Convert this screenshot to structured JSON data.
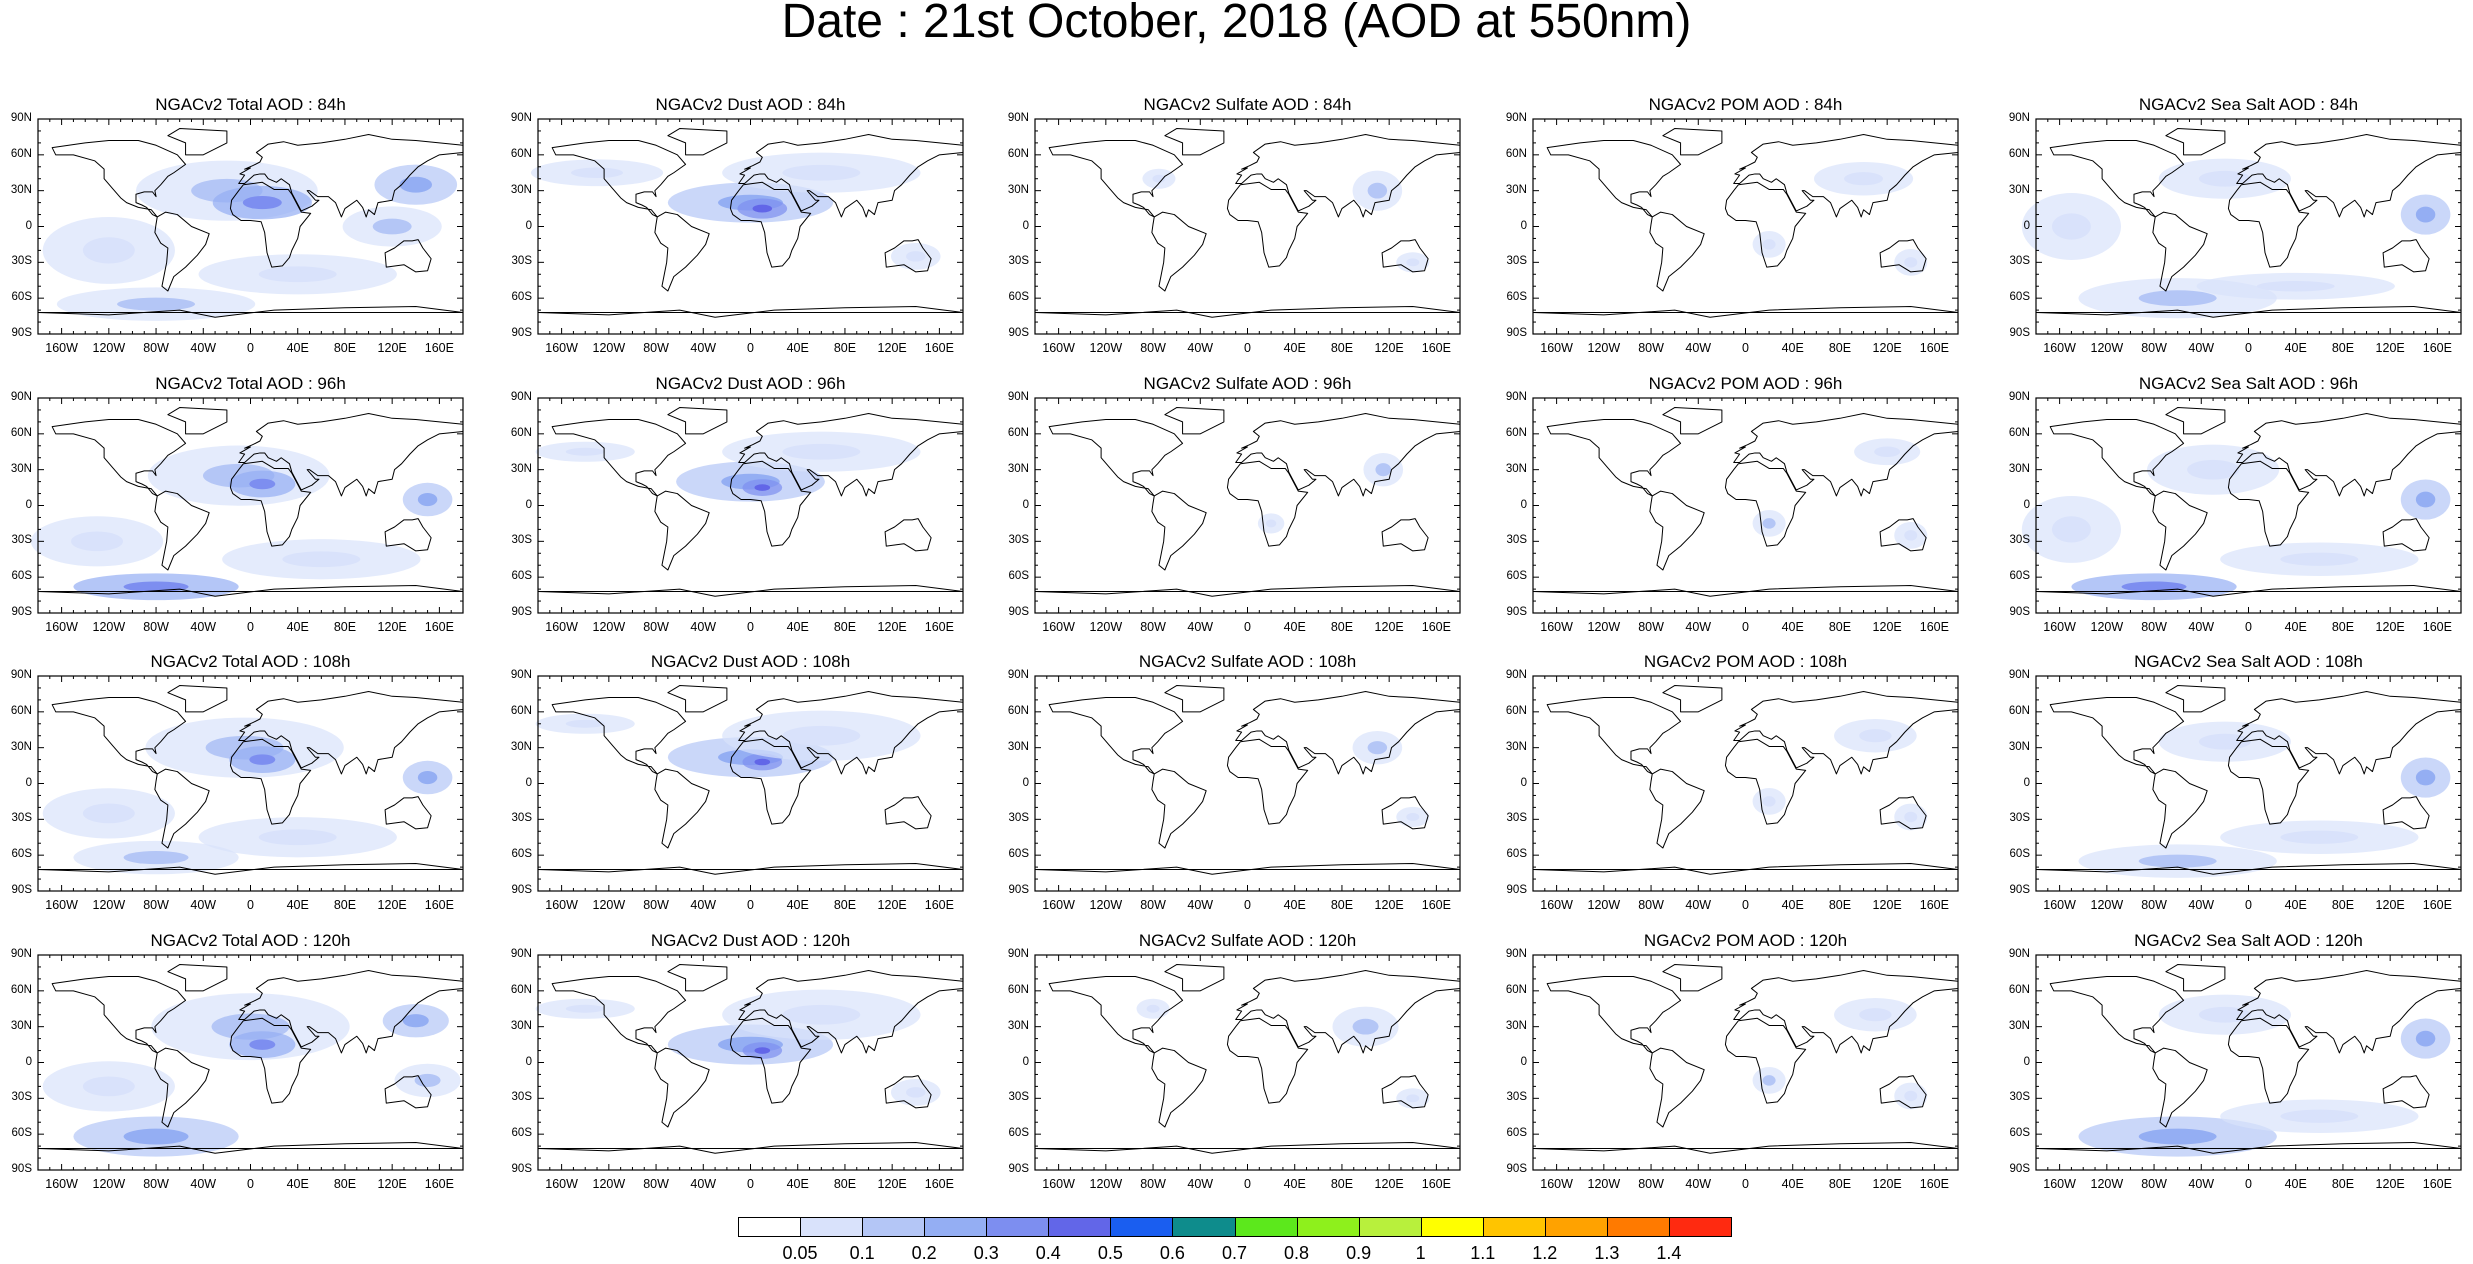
{
  "title": "Date : 21st October, 2018 (AOD at 550nm)",
  "panels": [
    [
      "NGACv2 Total AOD : 84h",
      "NGACv2 Dust AOD : 84h",
      "NGACv2 Sulfate AOD : 84h",
      "NGACv2 POM AOD : 84h",
      "NGACv2 Sea Salt AOD : 84h"
    ],
    [
      "NGACv2 Total AOD : 96h",
      "NGACv2 Dust AOD : 96h",
      "NGACv2 Sulfate AOD : 96h",
      "NGACv2 POM AOD : 96h",
      "NGACv2 Sea Salt AOD : 96h"
    ],
    [
      "NGACv2 Total AOD : 108h",
      "NGACv2 Dust AOD : 108h",
      "NGACv2 Sulfate AOD : 108h",
      "NGACv2 POM AOD : 108h",
      "NGACv2 Sea Salt AOD : 108h"
    ],
    [
      "NGACv2 Total AOD : 120h",
      "NGACv2 Dust AOD : 120h",
      "NGACv2 Sulfate AOD : 120h",
      "NGACv2 POM AOD : 120h",
      "NGACv2 Sea Salt  AOD : 120h"
    ]
  ],
  "lat_labels": [
    "90N",
    "60N",
    "30N",
    "0",
    "30S",
    "60S",
    "90S"
  ],
  "lon_labels": [
    "160W",
    "120W",
    "80W",
    "40W",
    "0",
    "40E",
    "80E",
    "120E",
    "160E"
  ],
  "colorbar": {
    "colors": [
      "#ffffff",
      "#d9e2fb",
      "#b4c6f6",
      "#94aef3",
      "#7d8ef0",
      "#6266e8",
      "#1a5ef0",
      "#0e8c8c",
      "#5ce81c",
      "#8ef01c",
      "#b8f03c",
      "#ffff00",
      "#ffc400",
      "#ffa200",
      "#ff7a00",
      "#ff2a10"
    ],
    "labels": [
      "0.05",
      "0.1",
      "0.2",
      "0.3",
      "0.4",
      "0.5",
      "0.6",
      "0.7",
      "0.8",
      "0.9",
      "1",
      "1.1",
      "1.2",
      "1.3",
      "1.4"
    ]
  },
  "rows": [
    {
      "blobs": [
        [
          {
            "lon": -20,
            "lat": 30,
            "rx": 55,
            "ry": 18,
            "level": 2
          },
          {
            "lon": 10,
            "lat": 20,
            "rx": 30,
            "ry": 10,
            "level": 4
          },
          {
            "lon": 140,
            "lat": 35,
            "rx": 25,
            "ry": 12,
            "level": 3
          },
          {
            "lon": -80,
            "lat": -65,
            "rx": 60,
            "ry": 10,
            "level": 2
          },
          {
            "lon": 120,
            "lat": 0,
            "rx": 30,
            "ry": 12,
            "level": 2
          },
          {
            "lon": -120,
            "lat": -20,
            "rx": 40,
            "ry": 20,
            "level": 1
          },
          {
            "lon": 40,
            "lat": -40,
            "rx": 60,
            "ry": 12,
            "level": 1
          }
        ],
        [
          {
            "lon": 0,
            "lat": 20,
            "rx": 50,
            "ry": 12,
            "level": 3
          },
          {
            "lon": 10,
            "lat": 15,
            "rx": 15,
            "ry": 6,
            "level": 5
          },
          {
            "lon": 60,
            "lat": 45,
            "rx": 60,
            "ry": 12,
            "level": 1
          },
          {
            "lon": -130,
            "lat": 45,
            "rx": 40,
            "ry": 8,
            "level": 1
          },
          {
            "lon": 140,
            "lat": -25,
            "rx": 15,
            "ry": 8,
            "level": 1
          }
        ],
        [
          {
            "lon": 110,
            "lat": 30,
            "rx": 15,
            "ry": 12,
            "level": 2
          },
          {
            "lon": -75,
            "lat": 40,
            "rx": 10,
            "ry": 6,
            "level": 1
          },
          {
            "lon": 140,
            "lat": -30,
            "rx": 10,
            "ry": 6,
            "level": 1
          }
        ],
        [
          {
            "lon": 100,
            "lat": 40,
            "rx": 30,
            "ry": 10,
            "level": 1
          },
          {
            "lon": 20,
            "lat": -15,
            "rx": 10,
            "ry": 8,
            "level": 1
          },
          {
            "lon": 140,
            "lat": -30,
            "rx": 10,
            "ry": 8,
            "level": 1
          }
        ],
        [
          {
            "lon": -60,
            "lat": -60,
            "rx": 60,
            "ry": 12,
            "level": 2
          },
          {
            "lon": 150,
            "lat": 10,
            "rx": 15,
            "ry": 12,
            "level": 3
          },
          {
            "lon": -20,
            "lat": 40,
            "rx": 40,
            "ry": 12,
            "level": 1
          },
          {
            "lon": 40,
            "lat": -50,
            "rx": 60,
            "ry": 8,
            "level": 1
          },
          {
            "lon": -150,
            "lat": 0,
            "rx": 30,
            "ry": 20,
            "level": 1
          }
        ]
      ]
    },
    {
      "blobs": [
        [
          {
            "lon": -10,
            "lat": 25,
            "rx": 55,
            "ry": 18,
            "level": 2
          },
          {
            "lon": 10,
            "lat": 18,
            "rx": 20,
            "ry": 8,
            "level": 4
          },
          {
            "lon": 150,
            "lat": 5,
            "rx": 15,
            "ry": 10,
            "level": 3
          },
          {
            "lon": -80,
            "lat": -68,
            "rx": 50,
            "ry": 8,
            "level": 4
          },
          {
            "lon": -130,
            "lat": -30,
            "rx": 40,
            "ry": 15,
            "level": 1
          },
          {
            "lon": 60,
            "lat": -45,
            "rx": 60,
            "ry": 12,
            "level": 1
          }
        ],
        [
          {
            "lon": 0,
            "lat": 20,
            "rx": 45,
            "ry": 12,
            "level": 3
          },
          {
            "lon": 10,
            "lat": 15,
            "rx": 12,
            "ry": 5,
            "level": 5
          },
          {
            "lon": 60,
            "lat": 45,
            "rx": 60,
            "ry": 12,
            "level": 1
          },
          {
            "lon": -140,
            "lat": 45,
            "rx": 30,
            "ry": 6,
            "level": 1
          }
        ],
        [
          {
            "lon": 115,
            "lat": 30,
            "rx": 12,
            "ry": 10,
            "level": 2
          },
          {
            "lon": 20,
            "lat": -15,
            "rx": 8,
            "ry": 6,
            "level": 1
          }
        ],
        [
          {
            "lon": 120,
            "lat": 45,
            "rx": 20,
            "ry": 8,
            "level": 1
          },
          {
            "lon": 20,
            "lat": -15,
            "rx": 10,
            "ry": 8,
            "level": 2
          },
          {
            "lon": 140,
            "lat": -25,
            "rx": 10,
            "ry": 8,
            "level": 1
          }
        ],
        [
          {
            "lon": -80,
            "lat": -68,
            "rx": 50,
            "ry": 8,
            "level": 4
          },
          {
            "lon": 150,
            "lat": 5,
            "rx": 15,
            "ry": 12,
            "level": 3
          },
          {
            "lon": -30,
            "lat": 30,
            "rx": 40,
            "ry": 15,
            "level": 1
          },
          {
            "lon": 60,
            "lat": -45,
            "rx": 60,
            "ry": 10,
            "level": 1
          },
          {
            "lon": -150,
            "lat": -20,
            "rx": 30,
            "ry": 20,
            "level": 1
          }
        ]
      ]
    },
    {
      "blobs": [
        [
          {
            "lon": -5,
            "lat": 30,
            "rx": 60,
            "ry": 18,
            "level": 2
          },
          {
            "lon": 10,
            "lat": 20,
            "rx": 20,
            "ry": 8,
            "level": 4
          },
          {
            "lon": 150,
            "lat": 5,
            "rx": 15,
            "ry": 10,
            "level": 3
          },
          {
            "lon": -80,
            "lat": -62,
            "rx": 50,
            "ry": 10,
            "level": 2
          },
          {
            "lon": -120,
            "lat": -25,
            "rx": 40,
            "ry": 15,
            "level": 1
          },
          {
            "lon": 40,
            "lat": -45,
            "rx": 60,
            "ry": 12,
            "level": 1
          }
        ],
        [
          {
            "lon": 0,
            "lat": 22,
            "rx": 50,
            "ry": 12,
            "level": 3
          },
          {
            "lon": 10,
            "lat": 18,
            "rx": 12,
            "ry": 5,
            "level": 5
          },
          {
            "lon": 60,
            "lat": 40,
            "rx": 60,
            "ry": 15,
            "level": 1
          },
          {
            "lon": -140,
            "lat": 50,
            "rx": 30,
            "ry": 6,
            "level": 1
          }
        ],
        [
          {
            "lon": 110,
            "lat": 30,
            "rx": 15,
            "ry": 10,
            "level": 2
          },
          {
            "lon": 140,
            "lat": -28,
            "rx": 10,
            "ry": 6,
            "level": 1
          }
        ],
        [
          {
            "lon": 110,
            "lat": 40,
            "rx": 25,
            "ry": 10,
            "level": 1
          },
          {
            "lon": 20,
            "lat": -15,
            "rx": 10,
            "ry": 8,
            "level": 1
          },
          {
            "lon": 140,
            "lat": -28,
            "rx": 10,
            "ry": 8,
            "level": 1
          }
        ],
        [
          {
            "lon": -60,
            "lat": -65,
            "rx": 60,
            "ry": 10,
            "level": 2
          },
          {
            "lon": 150,
            "lat": 5,
            "rx": 15,
            "ry": 12,
            "level": 3
          },
          {
            "lon": -20,
            "lat": 35,
            "rx": 40,
            "ry": 12,
            "level": 1
          },
          {
            "lon": 60,
            "lat": -45,
            "rx": 60,
            "ry": 10,
            "level": 1
          }
        ]
      ]
    },
    {
      "blobs": [
        [
          {
            "lon": 0,
            "lat": 30,
            "rx": 60,
            "ry": 20,
            "level": 2
          },
          {
            "lon": 10,
            "lat": 15,
            "rx": 20,
            "ry": 8,
            "level": 4
          },
          {
            "lon": 140,
            "lat": 35,
            "rx": 20,
            "ry": 10,
            "level": 3
          },
          {
            "lon": -80,
            "lat": -62,
            "rx": 50,
            "ry": 12,
            "level": 3
          },
          {
            "lon": 150,
            "lat": -15,
            "rx": 20,
            "ry": 10,
            "level": 2
          },
          {
            "lon": -120,
            "lat": -20,
            "rx": 40,
            "ry": 15,
            "level": 1
          }
        ],
        [
          {
            "lon": 0,
            "lat": 15,
            "rx": 50,
            "ry": 12,
            "level": 3
          },
          {
            "lon": 10,
            "lat": 10,
            "rx": 12,
            "ry": 5,
            "level": 5
          },
          {
            "lon": 60,
            "lat": 40,
            "rx": 60,
            "ry": 15,
            "level": 1
          },
          {
            "lon": -140,
            "lat": 45,
            "rx": 30,
            "ry": 6,
            "level": 1
          },
          {
            "lon": 140,
            "lat": -25,
            "rx": 15,
            "ry": 8,
            "level": 1
          }
        ],
        [
          {
            "lon": 100,
            "lat": 30,
            "rx": 20,
            "ry": 12,
            "level": 2
          },
          {
            "lon": -80,
            "lat": 45,
            "rx": 10,
            "ry": 6,
            "level": 1
          },
          {
            "lon": 140,
            "lat": -30,
            "rx": 10,
            "ry": 6,
            "level": 1
          }
        ],
        [
          {
            "lon": 110,
            "lat": 40,
            "rx": 25,
            "ry": 10,
            "level": 1
          },
          {
            "lon": 20,
            "lat": -15,
            "rx": 10,
            "ry": 8,
            "level": 2
          },
          {
            "lon": 140,
            "lat": -28,
            "rx": 10,
            "ry": 8,
            "level": 1
          }
        ],
        [
          {
            "lon": -60,
            "lat": -62,
            "rx": 60,
            "ry": 12,
            "level": 3
          },
          {
            "lon": 150,
            "lat": 20,
            "rx": 15,
            "ry": 12,
            "level": 3
          },
          {
            "lon": -20,
            "lat": 40,
            "rx": 40,
            "ry": 12,
            "level": 1
          },
          {
            "lon": 60,
            "lat": -45,
            "rx": 60,
            "ry": 10,
            "level": 1
          }
        ]
      ]
    }
  ]
}
